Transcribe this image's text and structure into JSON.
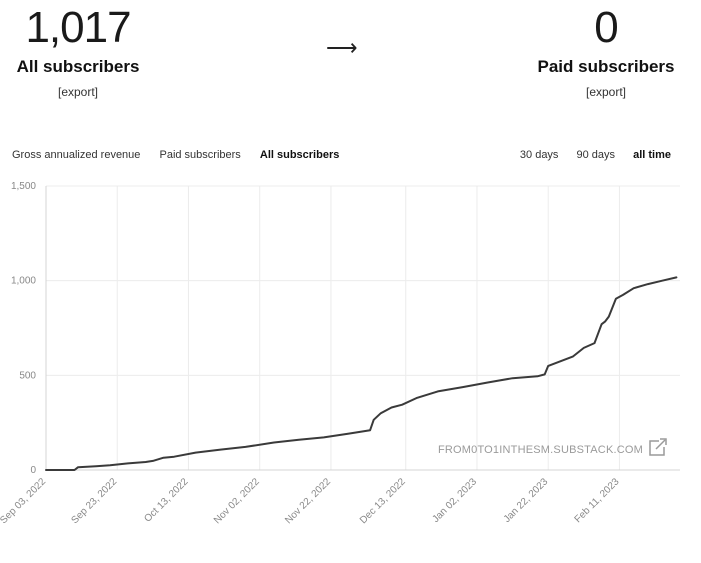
{
  "stats": {
    "all": {
      "value": "1,017",
      "label": "All subscribers",
      "export": "[export]"
    },
    "arrow": "⟶",
    "paid": {
      "value": "0",
      "label": "Paid subscribers",
      "export": "[export]"
    }
  },
  "tabs": {
    "metrics": [
      {
        "label": "Gross annualized revenue",
        "active": false
      },
      {
        "label": "Paid subscribers",
        "active": false
      },
      {
        "label": "All subscribers",
        "active": true
      }
    ],
    "ranges": [
      {
        "label": "30 days",
        "active": false
      },
      {
        "label": "90 days",
        "active": false
      },
      {
        "label": "all time",
        "active": true
      }
    ]
  },
  "watermark": "FROM0TO1INTHESM.SUBSTACK.COM",
  "colors": {
    "line": "#3a3a3a",
    "grid": "#ececec",
    "axis": "#d4d4d4"
  },
  "chart_data": {
    "type": "line",
    "title": "",
    "xlabel": "",
    "ylabel": "",
    "xlim": [
      "2022-09-03",
      "2023-02-28"
    ],
    "ylim": [
      0,
      1500
    ],
    "y_ticks": [
      0,
      500,
      1000,
      1500
    ],
    "y_tick_labels": [
      "0",
      "500",
      "1,000",
      "1,500"
    ],
    "x_ticks": [
      "2022-09-03",
      "2022-09-23",
      "2022-10-13",
      "2022-11-02",
      "2022-11-22",
      "2022-12-13",
      "2023-01-02",
      "2023-01-22",
      "2023-02-11"
    ],
    "x_tick_labels": [
      "Sep 03, 2022",
      "Sep 23, 2022",
      "Oct 13, 2022",
      "Nov 02, 2022",
      "Nov 22, 2022",
      "Dec 13, 2022",
      "Jan 02, 2023",
      "Jan 22, 2023",
      "Feb 11, 2023"
    ],
    "grid": true,
    "series": [
      {
        "x": [
          "2022-09-03",
          "2022-09-11",
          "2022-09-12",
          "2022-09-17",
          "2022-09-21",
          "2022-09-26",
          "2022-10-01",
          "2022-10-03",
          "2022-10-06",
          "2022-10-09",
          "2022-10-15",
          "2022-10-22",
          "2022-10-29",
          "2022-11-06",
          "2022-11-13",
          "2022-11-20",
          "2022-11-27",
          "2022-12-03",
          "2022-12-04",
          "2022-12-06",
          "2022-12-09",
          "2022-12-12",
          "2022-12-16",
          "2022-12-22",
          "2022-12-29",
          "2023-01-05",
          "2023-01-12",
          "2023-01-19",
          "2023-01-21",
          "2023-01-22",
          "2023-01-29",
          "2023-02-01",
          "2023-02-04",
          "2023-02-06",
          "2023-02-07",
          "2023-02-08",
          "2023-02-10",
          "2023-02-12",
          "2023-02-15",
          "2023-02-19",
          "2023-02-23",
          "2023-02-27"
        ],
        "y": [
          0,
          0,
          15,
          20,
          25,
          35,
          42,
          48,
          65,
          70,
          92,
          108,
          122,
          145,
          160,
          172,
          192,
          210,
          265,
          300,
          330,
          345,
          380,
          415,
          438,
          462,
          485,
          495,
          505,
          550,
          600,
          645,
          670,
          770,
          785,
          810,
          905,
          925,
          960,
          982,
          1000,
          1017
        ]
      }
    ]
  }
}
